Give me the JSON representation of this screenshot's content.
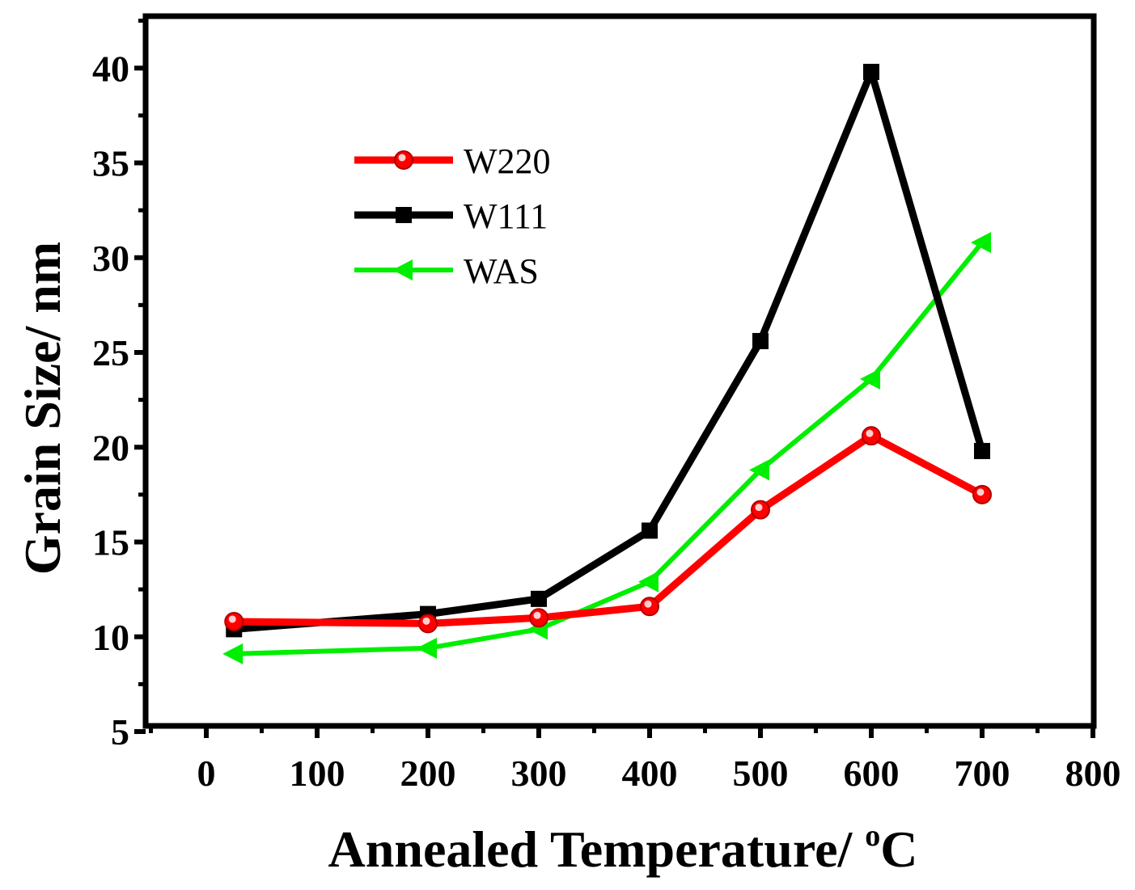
{
  "chart_data": {
    "type": "line",
    "title": "",
    "xlabel": "Annealed Temperature/ ",
    "xlabel_sup": "o",
    "xlabel_unit": "C",
    "ylabel": "Grain Size/ nm",
    "xlim": [
      -50,
      800
    ],
    "ylim": [
      5,
      42.5
    ],
    "xticks": [
      0,
      100,
      200,
      300,
      400,
      500,
      600,
      700,
      800
    ],
    "yticks": [
      5,
      10,
      15,
      20,
      25,
      30,
      35,
      40
    ],
    "legend_position": "upper-left",
    "series": [
      {
        "name": "W220",
        "color": "#ff0000",
        "marker": "circle",
        "x": [
          25,
          200,
          300,
          400,
          500,
          600,
          700
        ],
        "y": [
          10.8,
          10.7,
          11.0,
          11.6,
          16.7,
          20.6,
          17.5
        ]
      },
      {
        "name": "W111",
        "color": "#000000",
        "marker": "square",
        "x": [
          25,
          200,
          300,
          400,
          500,
          600,
          700
        ],
        "y": [
          10.4,
          11.2,
          12.0,
          15.6,
          25.6,
          39.8,
          19.8
        ]
      },
      {
        "name": "WAS",
        "color": "#00ee00",
        "marker": "triangle-left",
        "x": [
          25,
          200,
          300,
          400,
          500,
          600,
          700
        ],
        "y": [
          9.1,
          9.4,
          10.4,
          12.9,
          18.8,
          23.6,
          30.8
        ]
      }
    ]
  }
}
